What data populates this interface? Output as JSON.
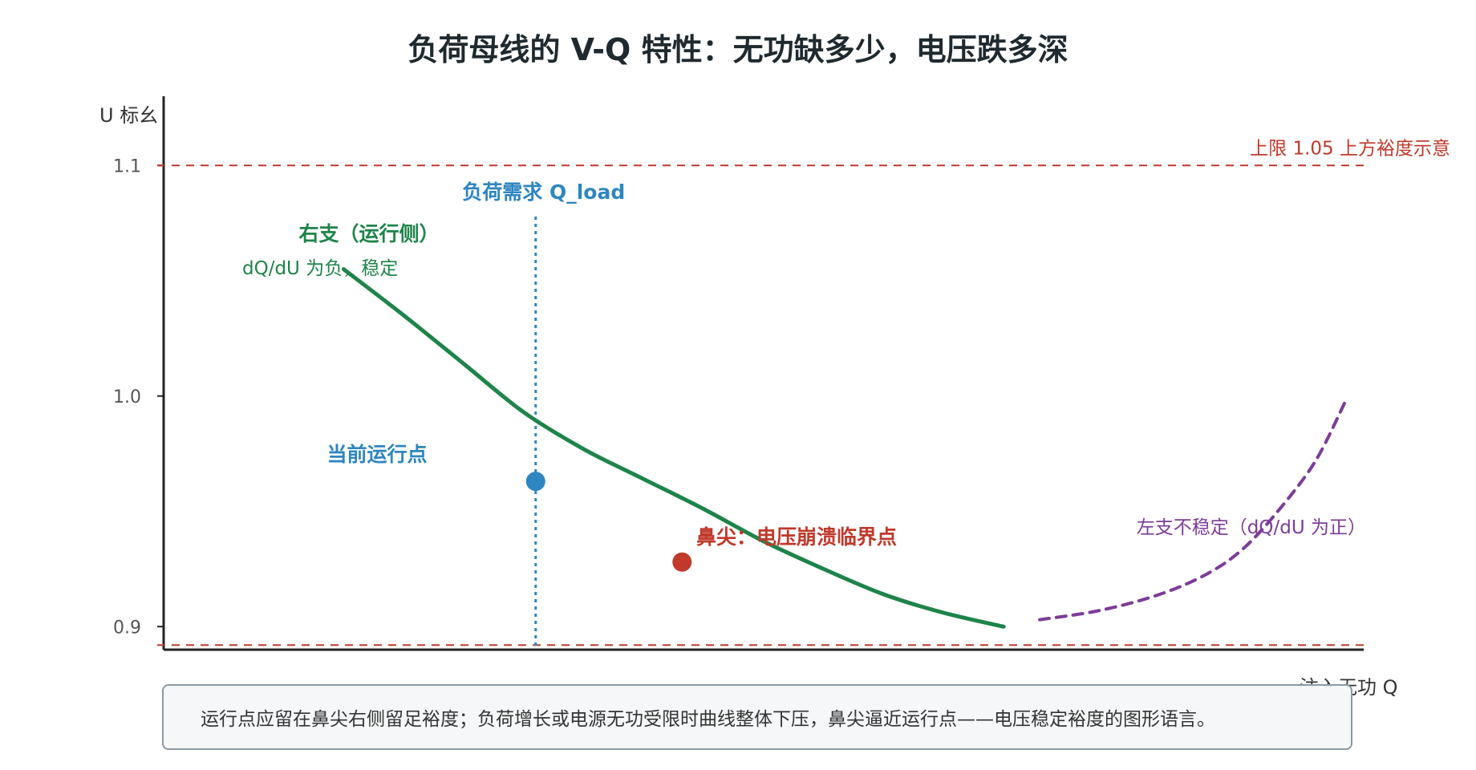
{
  "chart_data": {
    "type": "line",
    "title": "负荷母线的 V-Q 特性：无功缺多少，电压跌多深",
    "xlabel": "注入无功 Q",
    "ylabel": "U 标幺",
    "yticks": [
      "1.1",
      "1.0",
      "0.9"
    ],
    "ylim": [
      0.89,
      1.13
    ],
    "xlim": [
      0,
      1
    ],
    "grid": false,
    "series": [
      {
        "name": "右支（运行侧）",
        "style": "solid",
        "color": "#1e8449",
        "x": [
          0.15,
          0.2,
          0.25,
          0.3,
          0.35,
          0.4,
          0.45,
          0.5,
          0.55,
          0.6,
          0.65,
          0.7
        ],
        "y": [
          1.055,
          1.035,
          1.014,
          0.993,
          0.977,
          0.964,
          0.951,
          0.937,
          0.925,
          0.914,
          0.906,
          0.9
        ]
      },
      {
        "name": "左支不稳定（dQ/dU 为正）",
        "style": "dashed",
        "color": "#7d3c98",
        "x": [
          0.73,
          0.78,
          0.83,
          0.87,
          0.9,
          0.93,
          0.96,
          0.985
        ],
        "y": [
          0.903,
          0.907,
          0.914,
          0.923,
          0.934,
          0.951,
          0.972,
          0.998
        ]
      }
    ],
    "reference_lines": [
      {
        "label": "上限 1.05 上方裕度示意",
        "orientation": "horizontal",
        "value": 1.1,
        "color": "#c0392b",
        "style": "dashed"
      },
      {
        "label": "",
        "orientation": "horizontal",
        "value": 0.892,
        "color": "#c0392b",
        "style": "dashed"
      },
      {
        "label": "负荷需求 Q_load",
        "orientation": "vertical",
        "value": 0.31,
        "color": "#2e86c1",
        "style": "dotted"
      }
    ],
    "points": [
      {
        "label": "当前运行点",
        "x": 0.31,
        "y": 0.963,
        "color": "#2e86c1"
      },
      {
        "label": "鼻尖：电压崩溃临界点",
        "x": 0.432,
        "y": 0.928,
        "color": "#c0392b"
      }
    ],
    "annotations": [
      {
        "title": "右支（运行侧）",
        "text": "dQ/dU 为负，稳定",
        "color": "#1e8449"
      },
      {
        "text": "左支不稳定（dQ/dU 为正）",
        "color": "#7d3c98"
      }
    ],
    "note": "运行点应留在鼻尖右侧留足裕度；负荷增长或电源无功受限时曲线整体下压，鼻尖逼近运行点——电压稳定裕度的图形语言。"
  }
}
